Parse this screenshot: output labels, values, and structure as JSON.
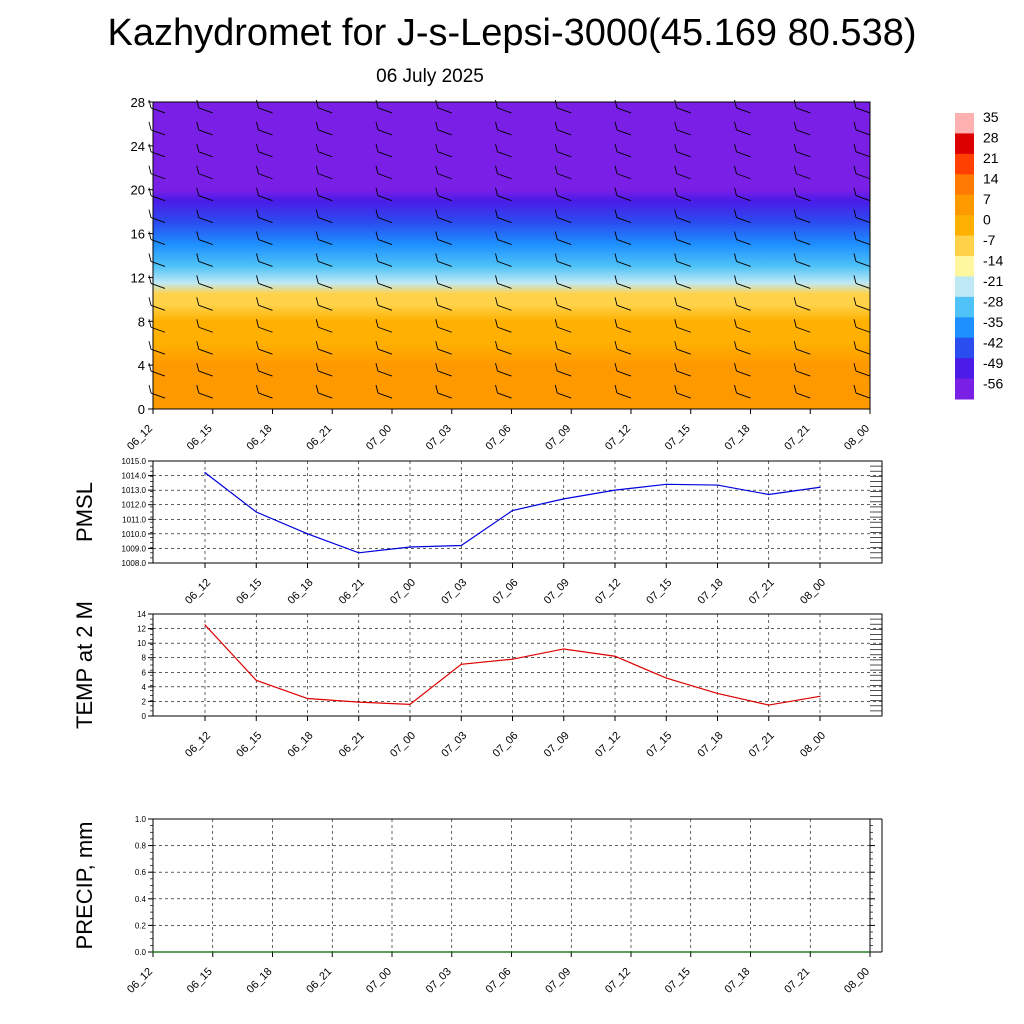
{
  "title": "Kazhydromet for J-s-Lepsi-3000(45.169 80.538)",
  "date": "06 July 2025",
  "colors": {
    "pmsl_line": "#0000dd",
    "temp_line": "#dd0000",
    "precip_line": "#006400",
    "grid": "#000000",
    "colorbar_stops": [
      "#7a1fe6",
      "#4b1be8",
      "#2a4df0",
      "#1e90ff",
      "#4fc3f7",
      "#bfe8f5",
      "#fff7a0",
      "#ffd24a",
      "#ffb000",
      "#ff9900",
      "#ff7a00",
      "#ff4000",
      "#dd0000",
      "#ffb0b0"
    ]
  },
  "chart_data": [
    {
      "type": "heatmap",
      "title": "",
      "xlabel": "",
      "ylabel": "",
      "x": [
        "06_12",
        "06_15",
        "06_18",
        "06_21",
        "07_00",
        "07_03",
        "07_06",
        "07_09",
        "07_12",
        "07_15",
        "07_18",
        "07_21",
        "08_00"
      ],
      "y_ticks": [
        0,
        4,
        8,
        12,
        16,
        20,
        24,
        28
      ],
      "ylim": [
        0,
        28
      ],
      "vertical_profile": [
        {
          "level": 0,
          "value": 7
        },
        {
          "level": 2,
          "value": 6
        },
        {
          "level": 4,
          "value": 5
        },
        {
          "level": 6,
          "value": 3
        },
        {
          "level": 8,
          "value": 0
        },
        {
          "level": 9.5,
          "value": -4
        },
        {
          "level": 10.5,
          "value": -10
        },
        {
          "level": 11.5,
          "value": -18
        },
        {
          "level": 13,
          "value": -28
        },
        {
          "level": 15,
          "value": -36
        },
        {
          "level": 17,
          "value": -42
        },
        {
          "level": 19,
          "value": -52
        },
        {
          "level": 20,
          "value": -58
        },
        {
          "level": 22,
          "value": -56
        },
        {
          "level": 24,
          "value": -56
        },
        {
          "level": 28,
          "value": -54
        }
      ],
      "colorbar_ticks": [
        "35",
        "28",
        "21",
        "14",
        "7",
        "0",
        "-7",
        "-14",
        "-21",
        "-28",
        "-35",
        "-42",
        "-49",
        "-56"
      ],
      "overlay": "wind barbs",
      "grid": false
    },
    {
      "type": "line",
      "ylabel": "PMSL",
      "x": [
        "06_12",
        "06_15",
        "06_18",
        "06_21",
        "07_00",
        "07_03",
        "07_06",
        "07_09",
        "07_12",
        "07_15",
        "07_18",
        "07_21",
        "08_00"
      ],
      "series": [
        {
          "values": [
            1014.2,
            1011.5,
            1010.0,
            1008.7,
            1009.1,
            1009.2,
            1011.6,
            1012.4,
            1013.0,
            1013.4,
            1013.35,
            1012.7,
            1013.2
          ]
        }
      ],
      "ylim": [
        1008.0,
        1015.0
      ],
      "y_ticks": [
        "1008.0",
        "1009.0",
        "1010.0",
        "1011.0",
        "1012.0",
        "1013.0",
        "1014.0",
        "1015.0"
      ],
      "grid": true
    },
    {
      "type": "line",
      "ylabel": "TEMP at 2 M",
      "x": [
        "06_12",
        "06_15",
        "06_18",
        "06_21",
        "07_00",
        "07_03",
        "07_06",
        "07_09",
        "07_12",
        "07_15",
        "07_18",
        "07_21",
        "08_00"
      ],
      "series": [
        {
          "values": [
            12.5,
            4.9,
            2.4,
            1.9,
            1.6,
            7.1,
            7.8,
            9.2,
            8.2,
            5.2,
            3.1,
            1.5,
            2.7
          ]
        }
      ],
      "ylim": [
        0,
        14
      ],
      "y_ticks": [
        "0",
        "2",
        "4",
        "6",
        "8",
        "10",
        "12",
        "14"
      ],
      "grid": true
    },
    {
      "type": "line",
      "ylabel": "PRECIP, mm",
      "x": [
        "06_12",
        "06_15",
        "06_18",
        "06_21",
        "07_00",
        "07_03",
        "07_06",
        "07_09",
        "07_12",
        "07_15",
        "07_18",
        "07_21",
        "08_00"
      ],
      "series": [
        {
          "values": [
            0,
            0,
            0,
            0,
            0,
            0,
            0,
            0,
            0,
            0,
            0,
            0,
            0
          ]
        }
      ],
      "ylim": [
        0.0,
        1.0
      ],
      "y_ticks": [
        "0.0",
        "0.2",
        "0.4",
        "0.6",
        "0.8",
        "1.0"
      ],
      "grid": true
    }
  ]
}
